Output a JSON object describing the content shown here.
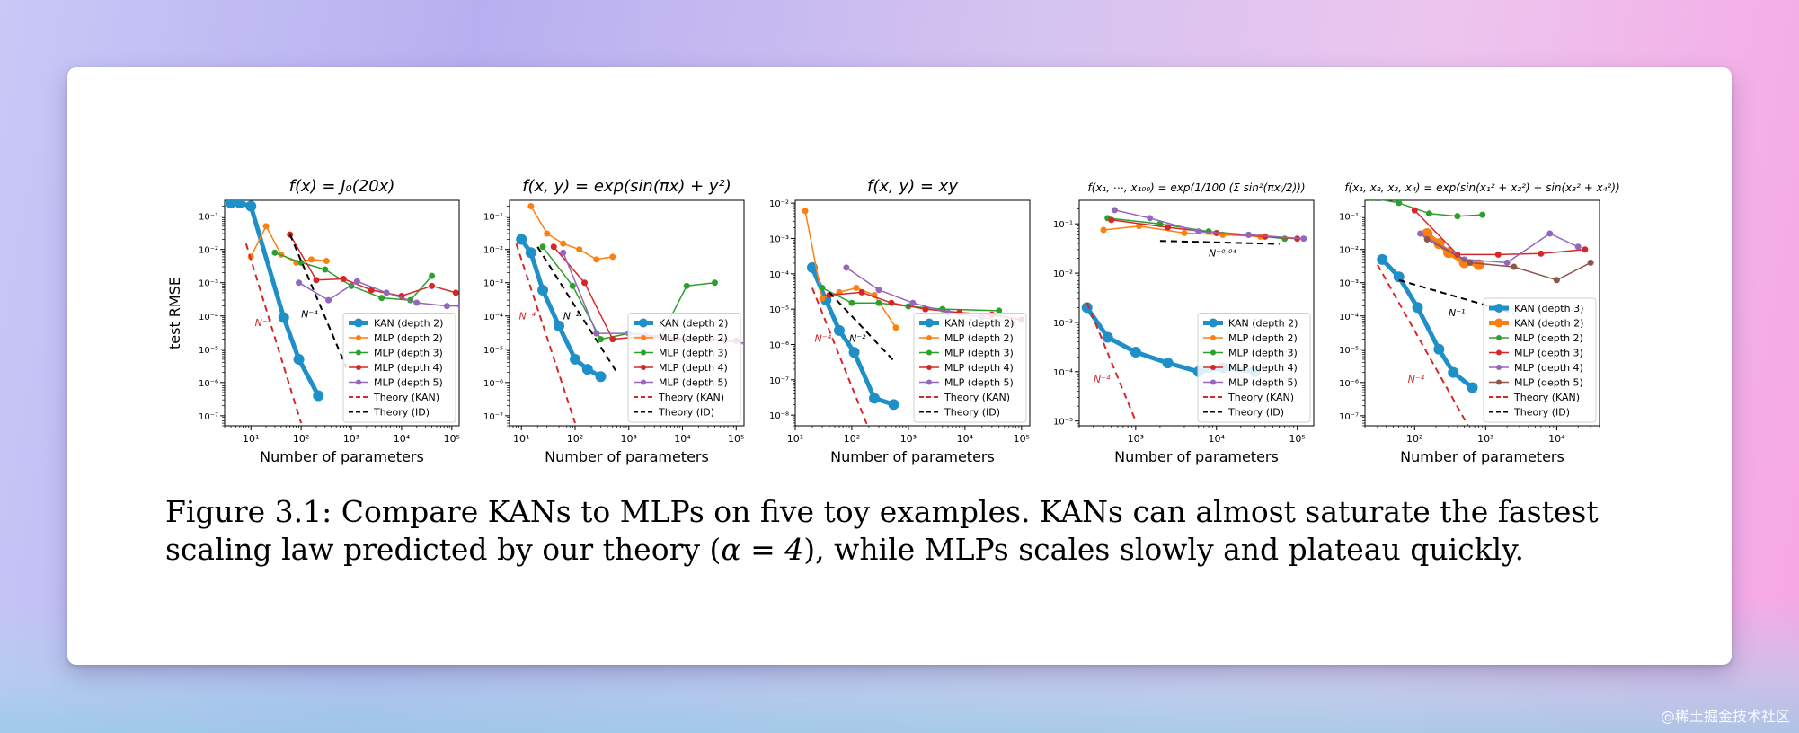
{
  "chart_data": [
    {
      "type": "line",
      "title": "f(x) = J₀(20x)",
      "xlabel": "Number of parameters",
      "ylabel": "test RMSE",
      "xscale": "log",
      "yscale": "log",
      "xlim": [
        3,
        140000
      ],
      "ylim": [
        5e-08,
        0.3
      ],
      "xticks": [
        "10¹",
        "10²",
        "10³",
        "10⁴",
        "10⁵"
      ],
      "yticks": [
        "10⁻¹",
        "10⁻²",
        "10⁻³",
        "10⁻⁴",
        "10⁻⁵",
        "10⁻⁶",
        "10⁻⁷"
      ],
      "legend_position": "lower-right",
      "series": [
        {
          "name": "KAN (depth 2)",
          "color": "#1f8fc7",
          "style": "thick",
          "x": [
            4,
            6,
            10,
            45,
            90,
            220
          ],
          "y": [
            0.25,
            0.25,
            0.2,
            9e-05,
            5e-06,
            4e-07
          ]
        },
        {
          "name": "MLP (depth 2)",
          "color": "#ff7f0e",
          "x": [
            10,
            20,
            40,
            80,
            160,
            320
          ],
          "y": [
            0.006,
            0.05,
            0.007,
            0.004,
            0.005,
            0.0045
          ]
        },
        {
          "name": "MLP (depth 3)",
          "color": "#2ca02c",
          "x": [
            30,
            100,
            300,
            1000,
            4000,
            15000,
            40000
          ],
          "y": [
            0.008,
            0.004,
            0.0025,
            0.0008,
            0.00035,
            0.0003,
            0.0016
          ]
        },
        {
          "name": "MLP (depth 4)",
          "color": "#d62728",
          "x": [
            60,
            200,
            700,
            2500,
            10000,
            40000,
            120000
          ],
          "y": [
            0.028,
            0.0012,
            0.0013,
            0.0006,
            0.0004,
            0.0008,
            0.0005
          ]
        },
        {
          "name": "MLP (depth 5)",
          "color": "#9467bd",
          "x": [
            90,
            350,
            1300,
            5000,
            20000,
            80000,
            150000
          ],
          "y": [
            0.001,
            0.0003,
            0.0011,
            0.0005,
            0.00025,
            0.0002,
            0.0002
          ]
        },
        {
          "name": "Theory (KAN)",
          "color": "#d62728",
          "style": "dashed",
          "x": [
            8,
            100
          ],
          "y": [
            0.015,
            6e-08
          ]
        },
        {
          "name": "Theory (ID)",
          "color": "#000000",
          "style": "dashed",
          "x": [
            60,
            800
          ],
          "y": [
            0.028,
            2.8e-06
          ]
        }
      ],
      "annotations": [
        {
          "text": "N⁻⁴",
          "color": "#d62728",
          "x": 12,
          "y": 5e-05
        },
        {
          "text": "N⁻⁴",
          "color": "#000000",
          "x": 100,
          "y": 9e-05
        }
      ]
    },
    {
      "type": "line",
      "title": "f(x, y) = exp(sin(πx) + y²)",
      "xlabel": "Number of parameters",
      "xscale": "log",
      "yscale": "log",
      "xlim": [
        6,
        140000
      ],
      "ylim": [
        5e-08,
        0.3
      ],
      "xticks": [
        "10¹",
        "10²",
        "10³",
        "10⁴",
        "10⁵"
      ],
      "yticks": [
        "10⁻¹",
        "10⁻²",
        "10⁻³",
        "10⁻⁴",
        "10⁻⁵",
        "10⁻⁶",
        "10⁻⁷"
      ],
      "legend_position": "lower-right",
      "series": [
        {
          "name": "KAN (depth 2)",
          "color": "#1f8fc7",
          "style": "thick",
          "x": [
            10,
            15,
            25,
            50,
            100,
            170,
            300
          ],
          "y": [
            0.02,
            0.008,
            0.0006,
            5e-05,
            5e-06,
            2.5e-06,
            1.5e-06
          ]
        },
        {
          "name": "MLP (depth 2)",
          "color": "#ff7f0e",
          "x": [
            15,
            30,
            60,
            120,
            250,
            500
          ],
          "y": [
            0.2,
            0.03,
            0.015,
            0.01,
            0.005,
            0.006
          ]
        },
        {
          "name": "MLP (depth 3)",
          "color": "#2ca02c",
          "x": [
            25,
            90,
            300,
            1000,
            4000,
            12000,
            40000
          ],
          "y": [
            0.012,
            0.0008,
            2e-05,
            3e-05,
            2.5e-05,
            0.0008,
            0.001
          ]
        },
        {
          "name": "MLP (depth 4)",
          "color": "#d62728",
          "x": [
            40,
            150,
            500,
            2000,
            8000,
            30000,
            100000
          ],
          "y": [
            0.012,
            0.001,
            2e-05,
            2.5e-05,
            2e-05,
            2e-05,
            1.8e-05
          ]
        },
        {
          "name": "MLP (depth 5)",
          "color": "#9467bd",
          "x": [
            60,
            250,
            1000,
            4000,
            15000,
            60000,
            150000
          ],
          "y": [
            0.008,
            3e-05,
            3e-05,
            2.5e-05,
            2e-05,
            1.8e-05,
            1.5e-05
          ]
        },
        {
          "name": "Theory (KAN)",
          "color": "#d62728",
          "style": "dashed",
          "x": [
            8,
            100
          ],
          "y": [
            0.015,
            6e-08
          ]
        },
        {
          "name": "Theory (ID)",
          "color": "#000000",
          "style": "dashed",
          "x": [
            20,
            600
          ],
          "y": [
            0.012,
            2e-06
          ]
        }
      ],
      "annotations": [
        {
          "text": "N⁻⁴",
          "color": "#d62728",
          "x": 9,
          "y": 8e-05
        },
        {
          "text": "N⁻²",
          "color": "#000000",
          "x": 60,
          "y": 8e-05
        }
      ]
    },
    {
      "type": "line",
      "title": "f(x, y) = xy",
      "xlabel": "Number of parameters",
      "xscale": "log",
      "yscale": "log",
      "xlim": [
        10,
        140000
      ],
      "ylim": [
        5e-09,
        0.012
      ],
      "xticks": [
        "10¹",
        "10²",
        "10³",
        "10⁴",
        "10⁵"
      ],
      "yticks": [
        "10⁻²",
        "10⁻³",
        "10⁻⁴",
        "10⁻⁵",
        "10⁻⁶",
        "10⁻⁷",
        "10⁻⁸"
      ],
      "legend_position": "lower-right",
      "series": [
        {
          "name": "KAN (depth 2)",
          "color": "#1f8fc7",
          "style": "thick",
          "x": [
            20,
            35,
            60,
            110,
            250,
            550
          ],
          "y": [
            0.00015,
            1.8e-05,
            2.5e-06,
            6e-07,
            3e-08,
            2e-08
          ]
        },
        {
          "name": "MLP (depth 2)",
          "color": "#ff7f0e",
          "x": [
            15,
            30,
            60,
            120,
            250,
            600
          ],
          "y": [
            0.006,
            2e-05,
            3e-05,
            4e-05,
            2.5e-05,
            3e-06
          ]
        },
        {
          "name": "MLP (depth 3)",
          "color": "#2ca02c",
          "x": [
            30,
            100,
            300,
            1000,
            4000,
            40000
          ],
          "y": [
            4e-05,
            1.5e-05,
            1.5e-05,
            1.2e-05,
            1e-05,
            9e-06
          ]
        },
        {
          "name": "MLP (depth 4)",
          "color": "#d62728",
          "x": [
            40,
            150,
            500,
            2000,
            8000,
            30000,
            100000
          ],
          "y": [
            2.5e-05,
            3e-05,
            1.5e-05,
            1e-05,
            8e-06,
            7e-06,
            5e-06
          ]
        },
        {
          "name": "MLP (depth 5)",
          "color": "#9467bd",
          "x": [
            80,
            300,
            1200,
            5000,
            20000,
            70000
          ],
          "y": [
            0.00015,
            3.5e-05,
            1.5e-05,
            8e-06,
            6e-06,
            4e-06
          ]
        },
        {
          "name": "Theory (KAN)",
          "color": "#d62728",
          "style": "dashed",
          "x": [
            20,
            200
          ],
          "y": [
            4e-05,
            4e-09
          ]
        },
        {
          "name": "Theory (ID)",
          "color": "#000000",
          "style": "dashed",
          "x": [
            40,
            600
          ],
          "y": [
            3e-05,
            3e-07
          ]
        }
      ],
      "annotations": [
        {
          "text": "N⁻⁴",
          "color": "#d62728",
          "x": 22,
          "y": 1.2e-06
        },
        {
          "text": "N⁻²",
          "color": "#000000",
          "x": 90,
          "y": 1.2e-06
        }
      ]
    },
    {
      "type": "line",
      "title": "f(x₁, ⋯, x₁₀₀) = exp(1/100 (Σ sin²(πxᵢ/2)))",
      "xlabel": "Number of parameters",
      "xscale": "log",
      "yscale": "log",
      "xlim": [
        200,
        160000
      ],
      "ylim": [
        8e-06,
        0.3
      ],
      "xticks": [
        "10³",
        "10⁴",
        "10⁵"
      ],
      "yticks": [
        "10⁻¹",
        "10⁻²",
        "10⁻³",
        "10⁻⁴",
        "10⁻⁵"
      ],
      "legend_position": "lower-right",
      "series": [
        {
          "name": "KAN (depth 2)",
          "color": "#1f8fc7",
          "style": "thick",
          "x": [
            250,
            450,
            1000,
            2500,
            6000,
            12000,
            30000
          ],
          "y": [
            0.002,
            0.0005,
            0.00025,
            0.00015,
            0.0001,
            0.00012,
            0.0001
          ]
        },
        {
          "name": "MLP (depth 2)",
          "color": "#ff7f0e",
          "x": [
            400,
            1100,
            4000,
            12000,
            35000
          ],
          "y": [
            0.075,
            0.09,
            0.065,
            0.06,
            0.055
          ]
        },
        {
          "name": "MLP (depth 3)",
          "color": "#2ca02c",
          "x": [
            450,
            2000,
            8000,
            25000,
            70000
          ],
          "y": [
            0.13,
            0.1,
            0.07,
            0.06,
            0.05
          ]
        },
        {
          "name": "MLP (depth 4)",
          "color": "#d62728",
          "x": [
            500,
            2500,
            10000,
            40000,
            100000
          ],
          "y": [
            0.12,
            0.085,
            0.065,
            0.055,
            0.05
          ]
        },
        {
          "name": "MLP (depth 5)",
          "color": "#9467bd",
          "x": [
            550,
            1500,
            6000,
            25000,
            120000
          ],
          "y": [
            0.19,
            0.13,
            0.07,
            0.06,
            0.05
          ]
        },
        {
          "name": "Theory (KAN)",
          "color": "#d62728",
          "style": "dashed",
          "x": [
            250,
            1000
          ],
          "y": [
            0.0025,
            1e-05
          ]
        },
        {
          "name": "Theory (ID)",
          "color": "#000000",
          "style": "dashed",
          "x": [
            2000,
            60000
          ],
          "y": [
            0.045,
            0.039
          ]
        }
      ],
      "annotations": [
        {
          "text": "N⁻⁴",
          "color": "#d62728",
          "x": 300,
          "y": 6e-05
        },
        {
          "text": "N⁻⁰·⁰⁴",
          "color": "#000000",
          "x": 8000,
          "y": 0.022
        }
      ]
    },
    {
      "type": "line",
      "title": "f(x₁, x₂, x₃, x₄) = exp(sin(x₁² + x₂²) + sin(x₃² + x₄²))",
      "xlabel": "Number of parameters",
      "xscale": "log",
      "yscale": "log",
      "xlim": [
        20,
        40000
      ],
      "ylim": [
        5e-08,
        0.3
      ],
      "xticks": [
        "10²",
        "10³",
        "10⁴"
      ],
      "yticks": [
        "10⁻¹",
        "10⁻²",
        "10⁻³",
        "10⁻⁴",
        "10⁻⁵",
        "10⁻⁶",
        "10⁻⁷"
      ],
      "legend_position": "lower-right",
      "series": [
        {
          "name": "KAN (depth 3)",
          "color": "#1f8fc7",
          "style": "thick",
          "x": [
            35,
            60,
            110,
            220,
            350,
            650
          ],
          "y": [
            0.005,
            0.0015,
            0.00018,
            1e-05,
            2e-06,
            7e-07
          ]
        },
        {
          "name": "KAN (depth 2)",
          "color": "#ff7f0e",
          "style": "thick",
          "x": [
            150,
            220,
            300,
            500,
            800
          ],
          "y": [
            0.03,
            0.015,
            0.008,
            0.004,
            0.0035
          ]
        },
        {
          "name": "MLP (depth 2)",
          "color": "#2ca02c",
          "x": [
            25,
            60,
            160,
            400,
            900
          ],
          "y": [
            0.35,
            0.25,
            0.12,
            0.1,
            0.11
          ]
        },
        {
          "name": "MLP (depth 3)",
          "color": "#d62728",
          "x": [
            100,
            400,
            1500,
            6000,
            25000
          ],
          "y": [
            0.15,
            0.007,
            0.007,
            0.0075,
            0.01
          ]
        },
        {
          "name": "MLP (depth 4)",
          "color": "#9467bd",
          "x": [
            120,
            500,
            2000,
            8000,
            20000
          ],
          "y": [
            0.03,
            0.005,
            0.004,
            0.03,
            0.012
          ]
        },
        {
          "name": "MLP (depth 5)",
          "color": "#8c564b",
          "x": [
            150,
            600,
            2500,
            10000,
            30000
          ],
          "y": [
            0.02,
            0.004,
            0.003,
            0.0012,
            0.004
          ]
        },
        {
          "name": "Theory (KAN)",
          "color": "#d62728",
          "style": "dashed",
          "x": [
            30,
            600
          ],
          "y": [
            0.0035,
            4e-08
          ]
        },
        {
          "name": "Theory (ID)",
          "color": "#000000",
          "style": "dashed",
          "x": [
            60,
            2500
          ],
          "y": [
            0.0012,
            0.00012
          ]
        }
      ],
      "annotations": [
        {
          "text": "N⁻⁴",
          "color": "#d62728",
          "x": 80,
          "y": 1e-06
        },
        {
          "text": "N⁻¹",
          "color": "#000000",
          "x": 300,
          "y": 0.0001
        }
      ]
    }
  ],
  "caption": {
    "label": "Figure 3.1:",
    "part1": " Compare KANs to MLPs on five toy examples.  KANs can almost saturate the fastest scaling law predicted by our theory (",
    "math": "α = 4",
    "part2": "), while MLPs scales slowly and plateau quickly."
  },
  "watermark": "@稀土掘金技术社区"
}
